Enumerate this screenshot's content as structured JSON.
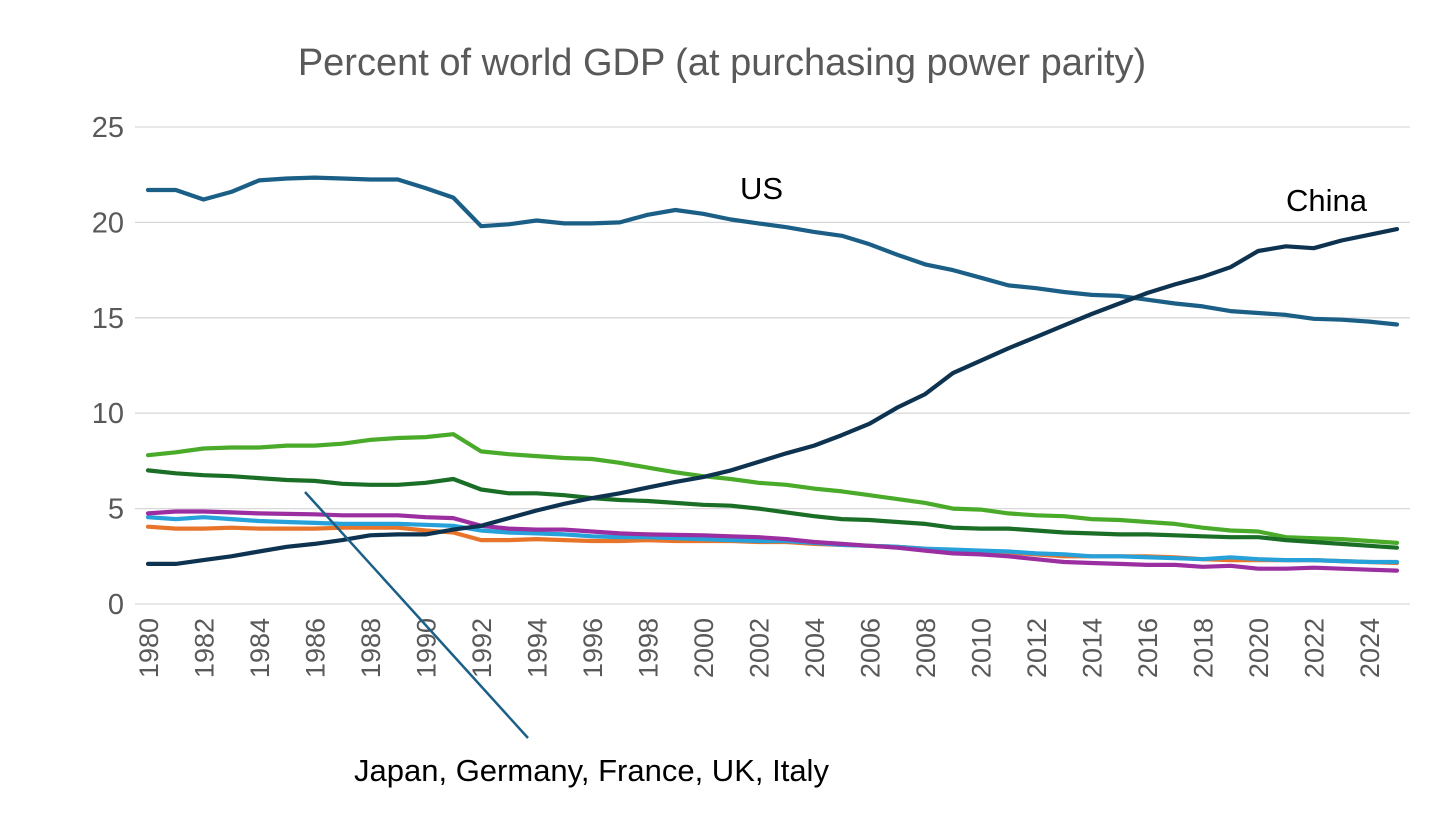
{
  "chart_data": {
    "type": "line",
    "title": "Percent of world GDP (at purchasing power parity)",
    "xlabel": "",
    "ylabel": "",
    "ylim": [
      0,
      25
    ],
    "yticks": [
      0,
      5,
      10,
      15,
      20,
      25
    ],
    "xlim": [
      1980,
      2025
    ],
    "xtick_labels": [
      "1980",
      "1982",
      "1984",
      "1986",
      "1988",
      "1990",
      "1992",
      "1994",
      "1996",
      "1998",
      "2000",
      "2002",
      "2004",
      "2006",
      "2008",
      "2010",
      "2012",
      "2014",
      "2016",
      "2018",
      "2020",
      "2022",
      "2024"
    ],
    "grid": "horizontal",
    "legend": "none",
    "x": [
      1980,
      1981,
      1982,
      1983,
      1984,
      1985,
      1986,
      1987,
      1988,
      1989,
      1990,
      1991,
      1992,
      1993,
      1994,
      1995,
      1996,
      1997,
      1998,
      1999,
      2000,
      2001,
      2002,
      2003,
      2004,
      2005,
      2006,
      2007,
      2008,
      2009,
      2010,
      2011,
      2012,
      2013,
      2014,
      2015,
      2016,
      2017,
      2018,
      2019,
      2020,
      2021,
      2022,
      2023,
      2024,
      2025
    ],
    "series": [
      {
        "name": "US",
        "color": "#1b5f87",
        "values": [
          21.7,
          21.7,
          21.2,
          21.6,
          22.2,
          22.3,
          22.35,
          22.3,
          22.25,
          22.25,
          21.8,
          21.3,
          19.8,
          19.9,
          20.1,
          19.95,
          19.95,
          20.0,
          20.4,
          20.65,
          20.45,
          20.15,
          19.95,
          19.75,
          19.5,
          19.3,
          18.85,
          18.3,
          17.8,
          17.5,
          17.1,
          16.7,
          16.55,
          16.35,
          16.2,
          16.15,
          15.95,
          15.75,
          15.6,
          15.35,
          15.25,
          15.15,
          14.95,
          14.9,
          14.8,
          14.65
        ]
      },
      {
        "name": "China",
        "color": "#0e3350",
        "values": [
          2.1,
          2.1,
          2.3,
          2.5,
          2.75,
          3.0,
          3.15,
          3.35,
          3.6,
          3.65,
          3.65,
          3.9,
          4.1,
          4.5,
          4.9,
          5.25,
          5.55,
          5.8,
          6.1,
          6.4,
          6.65,
          7.0,
          7.45,
          7.9,
          8.3,
          8.85,
          9.45,
          10.3,
          11.0,
          12.1,
          12.75,
          13.4,
          14.0,
          14.6,
          15.2,
          15.75,
          16.3,
          16.75,
          17.15,
          17.65,
          18.5,
          18.75,
          18.65,
          19.05,
          19.35,
          19.65
        ]
      },
      {
        "color": "#4aab2a",
        "values": [
          7.8,
          7.95,
          8.15,
          8.2,
          8.2,
          8.3,
          8.3,
          8.4,
          8.6,
          8.7,
          8.75,
          8.9,
          8.0,
          7.85,
          7.75,
          7.65,
          7.6,
          7.4,
          7.15,
          6.9,
          6.7,
          6.55,
          6.35,
          6.25,
          6.05,
          5.9,
          5.7,
          5.5,
          5.3,
          5.0,
          4.95,
          4.75,
          4.65,
          4.6,
          4.45,
          4.4,
          4.3,
          4.2,
          4.0,
          3.85,
          3.8,
          3.5,
          3.45,
          3.4,
          3.3,
          3.2
        ]
      },
      {
        "color": "#1a6e26",
        "values": [
          7.0,
          6.85,
          6.75,
          6.7,
          6.6,
          6.5,
          6.45,
          6.3,
          6.25,
          6.25,
          6.35,
          6.55,
          6.0,
          5.8,
          5.8,
          5.7,
          5.55,
          5.45,
          5.4,
          5.3,
          5.2,
          5.15,
          5.0,
          4.8,
          4.6,
          4.45,
          4.4,
          4.3,
          4.2,
          4.0,
          3.95,
          3.95,
          3.85,
          3.75,
          3.7,
          3.65,
          3.65,
          3.6,
          3.55,
          3.5,
          3.5,
          3.35,
          3.25,
          3.15,
          3.05,
          2.95
        ]
      },
      {
        "color": "#e8742a",
        "values": [
          4.05,
          3.95,
          3.95,
          4.0,
          3.95,
          3.95,
          3.95,
          4.0,
          4.0,
          4.0,
          3.85,
          3.75,
          3.35,
          3.35,
          3.4,
          3.35,
          3.3,
          3.3,
          3.35,
          3.3,
          3.3,
          3.3,
          3.25,
          3.25,
          3.15,
          3.1,
          3.05,
          3.0,
          2.9,
          2.75,
          2.7,
          2.7,
          2.6,
          2.5,
          2.5,
          2.5,
          2.5,
          2.45,
          2.35,
          2.3,
          2.3,
          2.3,
          2.3,
          2.25,
          2.2,
          2.15
        ]
      },
      {
        "color": "#26a1d9",
        "values": [
          4.55,
          4.45,
          4.55,
          4.45,
          4.35,
          4.3,
          4.25,
          4.2,
          4.2,
          4.2,
          4.15,
          4.1,
          3.85,
          3.75,
          3.7,
          3.65,
          3.55,
          3.5,
          3.5,
          3.45,
          3.4,
          3.35,
          3.3,
          3.3,
          3.2,
          3.1,
          3.05,
          3.0,
          2.9,
          2.85,
          2.8,
          2.75,
          2.65,
          2.6,
          2.5,
          2.5,
          2.45,
          2.4,
          2.35,
          2.45,
          2.35,
          2.3,
          2.3,
          2.25,
          2.2,
          2.2
        ]
      },
      {
        "color": "#9b2ea0",
        "values": [
          4.75,
          4.85,
          4.85,
          4.8,
          4.75,
          4.72,
          4.7,
          4.65,
          4.65,
          4.65,
          4.55,
          4.5,
          4.1,
          3.95,
          3.9,
          3.9,
          3.8,
          3.7,
          3.65,
          3.62,
          3.6,
          3.55,
          3.5,
          3.4,
          3.25,
          3.15,
          3.05,
          2.95,
          2.8,
          2.65,
          2.6,
          2.5,
          2.35,
          2.2,
          2.15,
          2.1,
          2.05,
          2.05,
          1.95,
          2.0,
          1.85,
          1.85,
          1.9,
          1.85,
          1.8,
          1.75
        ]
      }
    ],
    "annotations": {
      "us": "US",
      "china": "China",
      "others": "Japan, Germany, France, UK, Italy"
    }
  }
}
